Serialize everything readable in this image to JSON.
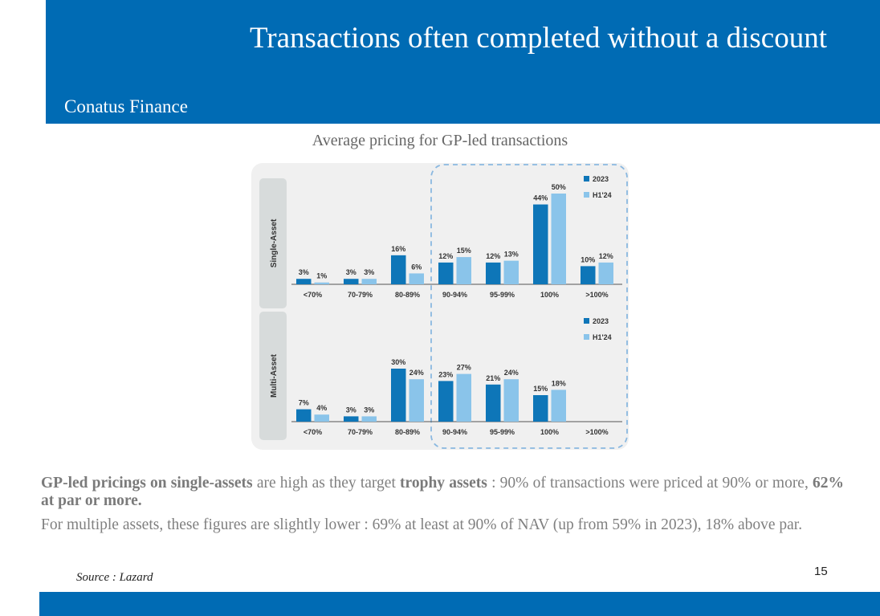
{
  "header": {
    "title": "Transactions often completed without a discount",
    "organization": "Conatus Finance"
  },
  "chart_title": "Average pricing for GP-led transactions",
  "body": {
    "p1": {
      "b1": "GP-led pricings on single-assets",
      "t1": " are high as they target ",
      "b2": "trophy assets",
      "t2": " : 90% of transactions were priced at 90% or more, ",
      "b3": "62% at par or more."
    },
    "p2": "For multiple assets, these figures are slightly lower : 69% at least at 90% of NAV (up from 59% in 2023), 18% above par."
  },
  "source": "Source : Lazard",
  "page_number": "15",
  "colors": {
    "brand_blue": "#006bb4",
    "series_2023": "#0e76b8",
    "series_h1_24": "#8ac4ea",
    "panel_bg": "#f0f0f0",
    "label_box": "#d7dbdb",
    "highlight_border": "#8ab8e0"
  },
  "chart_data": [
    {
      "type": "bar",
      "panel_label": "Single-Asset",
      "categories": [
        "<70%",
        "70-79%",
        "80-89%",
        "90-94%",
        "95-99%",
        "100%",
        ">100%"
      ],
      "series": [
        {
          "name": "2023",
          "values": [
            3,
            3,
            16,
            12,
            12,
            44,
            10
          ],
          "labels": [
            "3%",
            "3%",
            "16%",
            "12%",
            "12%",
            "44%",
            "10%"
          ]
        },
        {
          "name": "H1'24",
          "values": [
            1,
            3,
            6,
            15,
            13,
            50,
            12
          ],
          "labels": [
            "1%",
            "3%",
            "6%",
            "15%",
            "13%",
            "50%",
            "12%"
          ]
        }
      ],
      "legend_position": "top-right",
      "ylim": [
        0,
        50
      ]
    },
    {
      "type": "bar",
      "panel_label": "Multi-Asset",
      "categories": [
        "<70%",
        "70-79%",
        "80-89%",
        "90-94%",
        "95-99%",
        "100%",
        ">100%"
      ],
      "series": [
        {
          "name": "2023",
          "values": [
            7,
            3,
            30,
            23,
            21,
            15,
            null
          ],
          "labels": [
            "7%",
            "3%",
            "30%",
            "23%",
            "21%",
            "15%",
            null
          ]
        },
        {
          "name": "H1'24",
          "values": [
            4,
            3,
            24,
            27,
            24,
            18,
            null
          ],
          "labels": [
            "4%",
            "3%",
            "24%",
            "27%",
            "24%",
            "18%",
            null
          ]
        }
      ],
      "legend_position": "top-right",
      "ylim": [
        0,
        30
      ]
    }
  ],
  "highlight_note": "categories 90-94% through >100% are enclosed in a dashed box"
}
